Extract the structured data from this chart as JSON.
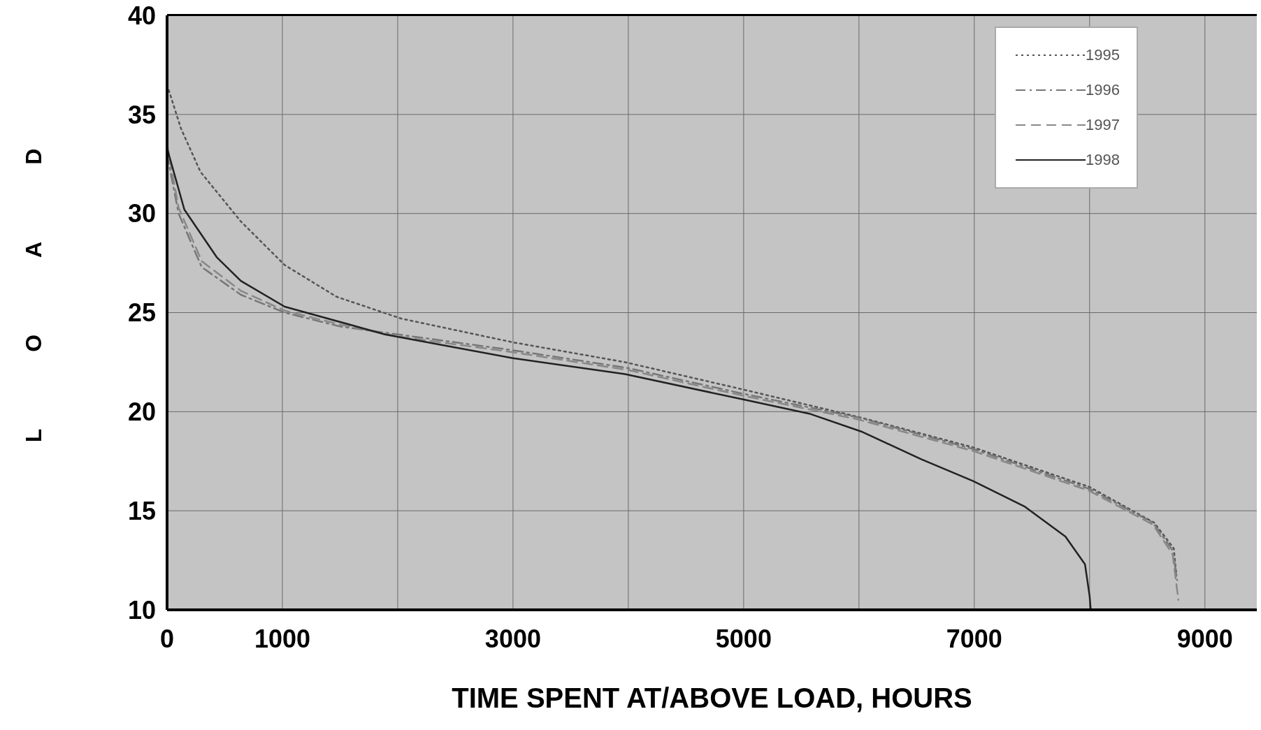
{
  "chart_data": {
    "type": "line",
    "xlabel": "TIME SPENT AT/ABOVE LOAD, HOURS",
    "ylabel": "LOAD",
    "xlim": [
      0,
      9450
    ],
    "ylim": [
      10,
      40
    ],
    "xticks": [
      0,
      1000,
      {
        "value": 2000,
        "label": null
      },
      3000,
      {
        "value": 4000,
        "label": null
      },
      5000,
      {
        "value": 6000,
        "label": null
      },
      7000,
      {
        "value": 8000,
        "label": null
      },
      9000
    ],
    "yticks": [
      10,
      15,
      20,
      25,
      30,
      35,
      40
    ],
    "grid": true,
    "legend": "top right",
    "marker": "none",
    "series": [
      {
        "name": "1995",
        "color": "#555555",
        "line_style": "dotted",
        "x": [
          0,
          120,
          290,
          640,
          1020,
          1470,
          2030,
          3000,
          3970,
          5010,
          6020,
          6990,
          8000,
          8560,
          8730,
          8750
        ],
        "values": [
          36.5,
          34.3,
          32.1,
          29.6,
          27.4,
          25.8,
          24.7,
          23.5,
          22.5,
          21.1,
          19.7,
          18.2,
          16.2,
          14.4,
          13.1,
          11.9
        ]
      },
      {
        "name": "1996",
        "color": "#777777",
        "line_style": "dashdot",
        "x": [
          0,
          100,
          300,
          640,
          1020,
          1500,
          2000,
          3000,
          4000,
          5000,
          6000,
          7000,
          8000,
          8550,
          8720,
          8760
        ],
        "values": [
          33.0,
          30.0,
          27.3,
          25.9,
          25.0,
          24.3,
          23.9,
          23.1,
          22.2,
          20.9,
          19.7,
          18.1,
          16.1,
          14.4,
          13.0,
          11.5
        ]
      },
      {
        "name": "1997",
        "color": "#888888",
        "line_style": "dashed",
        "x": [
          0,
          100,
          300,
          640,
          1020,
          1500,
          2000,
          3000,
          4000,
          5000,
          6000,
          7000,
          8000,
          8550,
          8720,
          8770
        ],
        "values": [
          33.5,
          30.3,
          27.6,
          26.1,
          25.1,
          24.4,
          23.8,
          23.0,
          22.1,
          20.8,
          19.6,
          18.0,
          16.0,
          14.3,
          12.8,
          10.5
        ]
      },
      {
        "name": "1998",
        "color": "#222222",
        "line_style": "solid",
        "x": [
          0,
          150,
          430,
          640,
          1020,
          1890,
          3000,
          3970,
          5010,
          5570,
          6020,
          6540,
          6990,
          7440,
          7790,
          7960,
          8000,
          8010
        ],
        "values": [
          33.3,
          30.2,
          27.8,
          26.6,
          25.3,
          23.9,
          22.7,
          21.9,
          20.6,
          19.9,
          19.0,
          17.6,
          16.5,
          15.2,
          13.7,
          12.3,
          10.7,
          10.0
        ]
      }
    ]
  }
}
